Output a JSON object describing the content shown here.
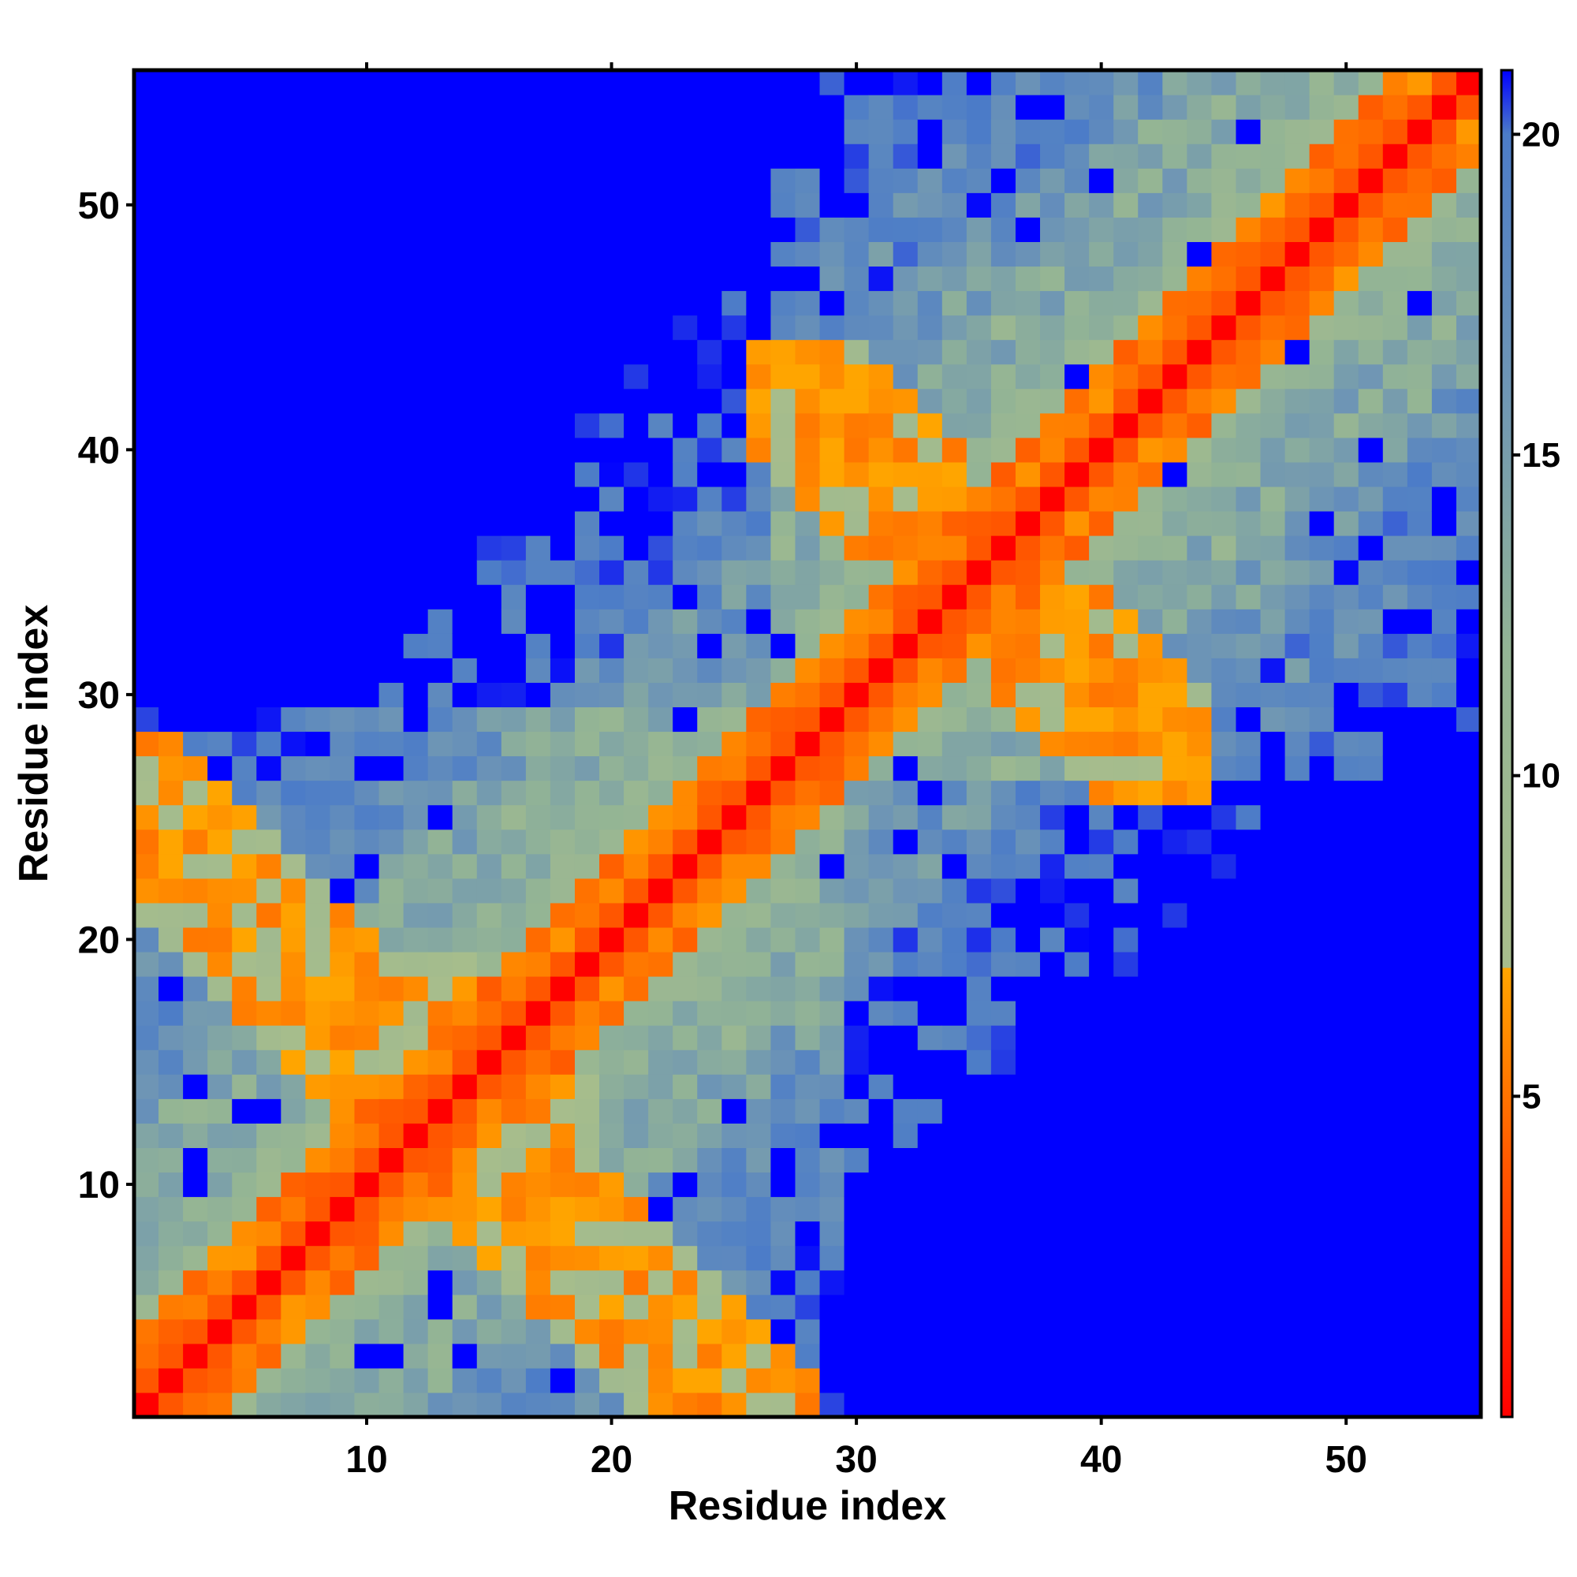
{
  "chart_data": {
    "type": "heatmap",
    "title": "",
    "xlabel": "Residue index",
    "ylabel": "Residue index",
    "n": 55,
    "xlim": [
      0.5,
      55.5
    ],
    "ylim": [
      0.5,
      55.5
    ],
    "x_ticks": [
      10,
      20,
      30,
      40,
      50
    ],
    "y_ticks": [
      10,
      20,
      30,
      40,
      50
    ],
    "colorbar": {
      "range": [
        0,
        21
      ],
      "ticks": [
        5,
        10,
        15,
        20
      ],
      "stops": [
        {
          "value": 0,
          "color": "#ff0000"
        },
        {
          "value": 4,
          "color": "#ff5a00"
        },
        {
          "value": 7,
          "color": "#ffa500"
        },
        {
          "value": 7.6,
          "color": "#a7bd8c"
        },
        {
          "value": 12,
          "color": "#93b495"
        },
        {
          "value": 16,
          "color": "#6f96b4"
        },
        {
          "value": 20,
          "color": "#4c7cc8"
        },
        {
          "value": 21,
          "color": "#0000ff"
        }
      ]
    },
    "distance_model": {
      "description": "Residue-residue distance map (symmetric). Values estimated from the image: ~0 on diagonal, warm colors (<7) near the diagonal and in helix/strand contact patches, grey-green to steel-blue (8-20) in the mid range, saturated blue (>=21) far from the diagonal.",
      "saturated_value": 21
    }
  }
}
